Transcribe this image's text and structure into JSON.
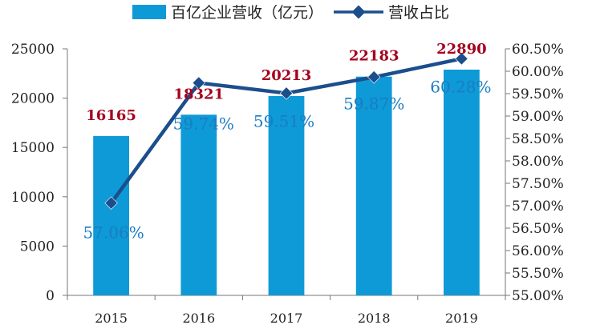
{
  "chart_data": {
    "type": "bar",
    "categories": [
      "2015",
      "2016",
      "2017",
      "2018",
      "2019"
    ],
    "series": [
      {
        "name": "百亿企业营收（亿元）",
        "kind": "bar",
        "axis": "left",
        "color": "#0e9ad6",
        "values": [
          16165,
          18321,
          20213,
          22183,
          22890
        ],
        "labels": [
          "16165",
          "18321",
          "20213",
          "22183",
          "22890"
        ]
      },
      {
        "name": "营收占比",
        "kind": "line",
        "axis": "right",
        "color": "#1b4e8c",
        "values": [
          57.06,
          59.74,
          59.51,
          59.87,
          60.28
        ],
        "labels": [
          "57.06%",
          "59.74%",
          "59.51%",
          "59.87%",
          "60.28%"
        ]
      }
    ],
    "y_left": {
      "min": 0,
      "max": 25000,
      "ticks": [
        "0",
        "5000",
        "10000",
        "15000",
        "20000",
        "25000"
      ]
    },
    "y_right": {
      "min": 55,
      "max": 60.5,
      "ticks": [
        "55.00%",
        "55.50%",
        "56.00%",
        "56.50%",
        "57.00%",
        "57.50%",
        "58.00%",
        "58.50%",
        "59.00%",
        "59.50%",
        "60.00%",
        "60.50%"
      ]
    },
    "legend_position": "top-center",
    "grid": false
  }
}
